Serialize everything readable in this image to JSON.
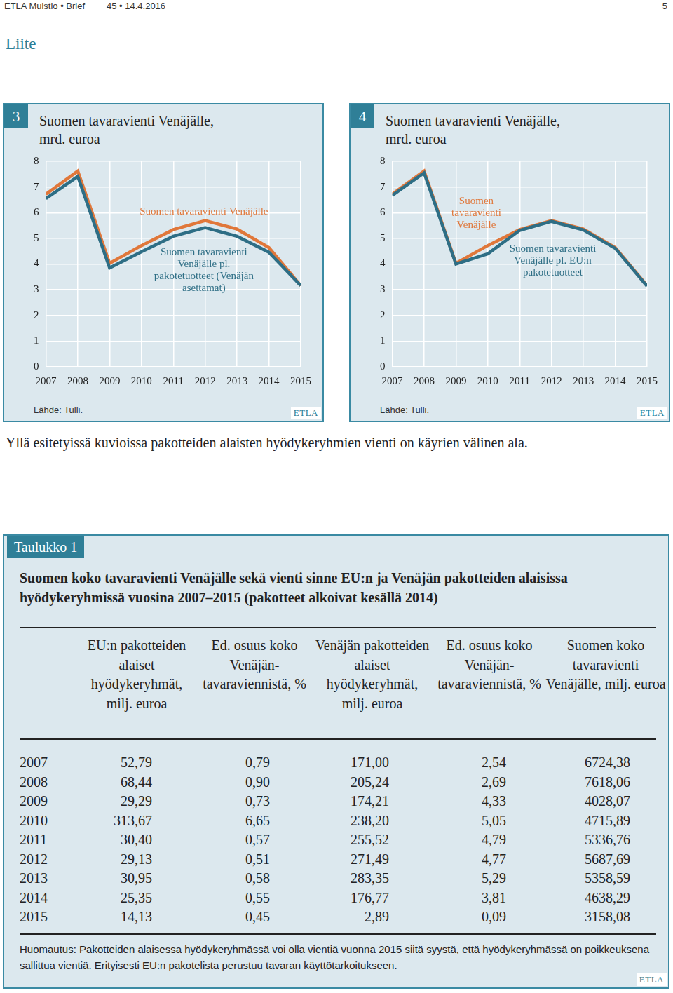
{
  "header": {
    "left": "ETLA Muistio • Brief",
    "issue": "45 • 14.4.2016",
    "page": "5"
  },
  "section": "Liite",
  "chart_data": [
    {
      "type": "line",
      "figure_label": "3",
      "title": "Suomen tavaravienti Venäjälle, mrd. euroa",
      "source": "Lähde: Tulli.",
      "logo": "ETLA",
      "categories": [
        "2007",
        "2008",
        "2009",
        "2010",
        "2011",
        "2012",
        "2013",
        "2014",
        "2015"
      ],
      "series": [
        {
          "name": "Suomen tavaravienti Venäjälle",
          "color": "#e0773a",
          "values": [
            6.72,
            7.62,
            4.03,
            4.72,
            5.34,
            5.69,
            5.36,
            4.64,
            3.16
          ]
        },
        {
          "name": "Suomen tavaravienti Venäjälle pl. pakotetuotteet (Venäjän asettamat)",
          "color": "#2e6e85",
          "values": [
            6.55,
            7.41,
            3.85,
            4.48,
            5.08,
            5.42,
            5.08,
            4.46,
            3.16
          ]
        }
      ],
      "ylim": [
        0,
        8
      ],
      "yticks": [
        0,
        1,
        2,
        3,
        4,
        5,
        6,
        7,
        8
      ],
      "grid": true
    },
    {
      "type": "line",
      "figure_label": "4",
      "title": "Suomen tavaravienti Venäjälle, mrd. euroa",
      "source": "Lähde: Tulli.",
      "logo": "ETLA",
      "categories": [
        "2007",
        "2008",
        "2009",
        "2010",
        "2011",
        "2012",
        "2013",
        "2014",
        "2015"
      ],
      "series": [
        {
          "name": "Suomen tavaravienti Venäjälle",
          "color": "#e0773a",
          "values": [
            6.72,
            7.62,
            4.03,
            4.72,
            5.34,
            5.69,
            5.36,
            4.64,
            3.16
          ]
        },
        {
          "name": "Suomen tavaravienti Venäjälle pl. EU:n pakotetuotteet",
          "color": "#2e6e85",
          "values": [
            6.67,
            7.55,
            4.0,
            4.4,
            5.31,
            5.66,
            5.33,
            4.61,
            3.14
          ]
        }
      ],
      "ylim": [
        0,
        8
      ],
      "yticks": [
        0,
        1,
        2,
        3,
        4,
        5,
        6,
        7,
        8
      ],
      "grid": true
    }
  ],
  "caption": "Yllä esitetyissä kuvioissa pakotteiden alaisten hyödykeryhmien vienti on käyrien välinen ala.",
  "table": {
    "tab": "Taulukko 1",
    "logo": "ETLA",
    "title": "Suomen koko tavaravienti Venäjälle sekä vienti sinne EU:n ja Venäjän pakotteiden alaisissa hyödykeryhmissä vuosina 2007–2015 (pakotteet alkoivat kesällä 2014)",
    "columns": [
      "EU:n pakotteiden alaiset hyödykeryhmät, milj. euroa",
      "Ed. osuus koko Venäjän-tavaraviennistä, %",
      "Venäjän pakotteiden alaiset hyödykeryhmät, milj. euroa",
      "Ed. osuus koko Venäjän-tavaraviennistä, %",
      "Suomen koko tavaravienti Venäjälle, milj. euroa"
    ],
    "rows": [
      [
        "2007",
        "52,79",
        "0,79",
        "171,00",
        "2,54",
        "6724,38"
      ],
      [
        "2008",
        "68,44",
        "0,90",
        "205,24",
        "2,69",
        "7618,06"
      ],
      [
        "2009",
        "29,29",
        "0,73",
        "174,21",
        "4,33",
        "4028,07"
      ],
      [
        "2010",
        "313,67",
        "6,65",
        "238,20",
        "5,05",
        "4715,89"
      ],
      [
        "2011",
        "30,40",
        "0,57",
        "255,52",
        "4,79",
        "5336,76"
      ],
      [
        "2012",
        "29,13",
        "0,51",
        "271,49",
        "4,77",
        "5687,69"
      ],
      [
        "2013",
        "30,95",
        "0,58",
        "283,35",
        "5,29",
        "5358,59"
      ],
      [
        "2014",
        "25,35",
        "0,55",
        "176,77",
        "3,81",
        "4638,29"
      ],
      [
        "2015",
        "14,13",
        "0,45",
        "2,89",
        "0,09",
        "3158,08"
      ]
    ],
    "note": "Huomautus: Pakotteiden alaisessa hyödykeryhmässä voi olla vientiä vuonna 2015 siitä syystä, että hyödykeryhmässä on poikkeuksena sallittua vientiä. Erityisesti EU:n pakotelista perustuu tavaran käyttötarkoitukseen."
  }
}
